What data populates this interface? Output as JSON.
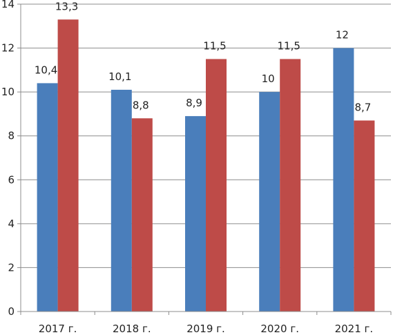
{
  "chart_data": {
    "type": "bar",
    "title": "",
    "xlabel": "",
    "ylabel": "",
    "categories": [
      "2017 г.",
      "2018 г.",
      "2019 г.",
      "2020 г.",
      "2021 г."
    ],
    "series": [
      {
        "values": [
          10.4,
          10.1,
          8.9,
          10,
          12
        ],
        "labels": [
          "10,4",
          "10,1",
          "8,9",
          "10",
          "12"
        ],
        "color": "#4a7ebb"
      },
      {
        "values": [
          13.3,
          8.8,
          11.5,
          11.5,
          8.7
        ],
        "labels": [
          "13,3",
          "8,8",
          "11,5",
          "11,5",
          "8,7"
        ],
        "color": "#be4b48"
      }
    ],
    "ylim": [
      0,
      14
    ],
    "yticks": [
      "0",
      "2",
      "4",
      "6",
      "8",
      "10",
      "12",
      "14"
    ],
    "grid": true,
    "legend": "none"
  }
}
